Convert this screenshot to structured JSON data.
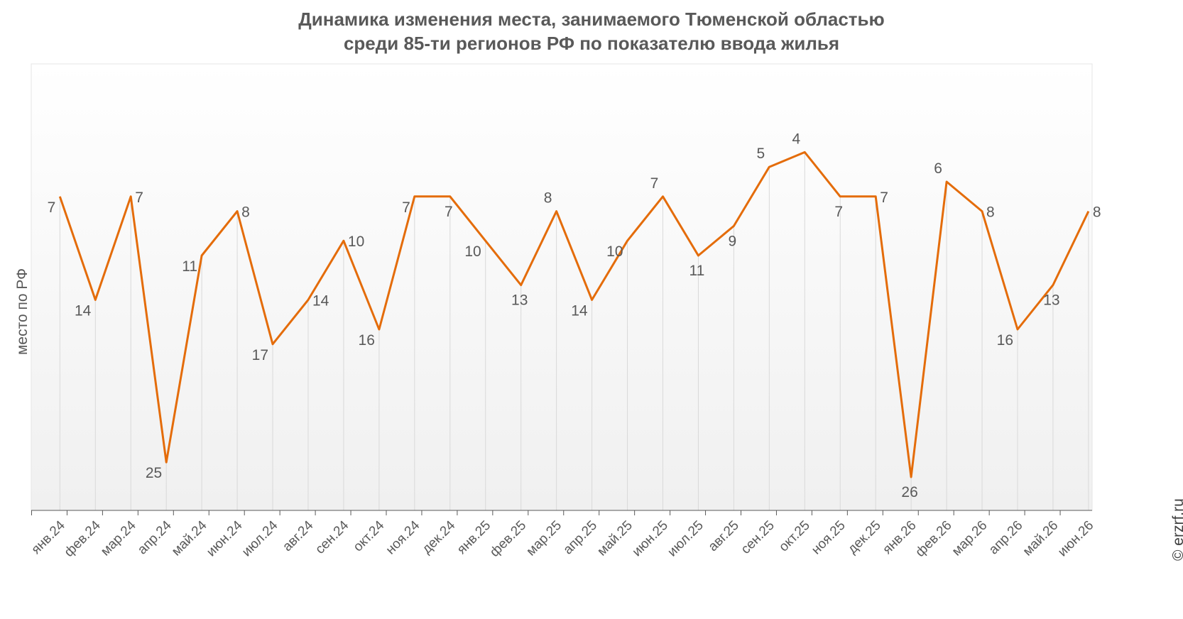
{
  "title_line1": "Динамика изменения места, занимаемого Тюменской областью",
  "title_line2": "среди 85-ти регионов РФ по показателю ввода жилья",
  "copyright": "© erzrf.ru",
  "colors": {
    "line": "#E46C0A",
    "gridline": "#D9D9D9",
    "axis": "#595959",
    "bg_top": "#FFFFFF",
    "bg_bottom": "#F0F0F0"
  },
  "chart_data": {
    "type": "line",
    "title": "Динамика изменения места, занимаемого Тюменской областью среди 85-ти регионов РФ по показателю ввода жилья",
    "ylabel": "место по РФ",
    "xlabel": "",
    "y_inverted": true,
    "ylim": [
      30,
      1
    ],
    "grid": false,
    "categories": [
      "янв.24",
      "фев.24",
      "мар.24",
      "апр.24",
      "май.24",
      "июн.24",
      "июл.24",
      "авг.24",
      "сен.24",
      "окт.24",
      "ноя.24",
      "дек.24",
      "янв.25",
      "фев.25",
      "мар.25",
      "апр.25",
      "май.25",
      "июн.25",
      "июл.25",
      "авг.25",
      "сен.25",
      "окт.25",
      "ноя.25",
      "дек.25",
      "янв.26",
      "фев.26",
      "мар.26",
      "апр.26",
      "май.26",
      "июн.26"
    ],
    "values": [
      7,
      14,
      7,
      25,
      11,
      8,
      17,
      14,
      10,
      16,
      7,
      7,
      10,
      13,
      8,
      14,
      10,
      7,
      11,
      9,
      5,
      4,
      7,
      7,
      26,
      6,
      8,
      16,
      13,
      8
    ],
    "label_position": [
      "left",
      "left",
      "right",
      "left",
      "left",
      "right",
      "left",
      "right",
      "right",
      "left",
      "left",
      "below",
      "left",
      "below",
      "above",
      "left",
      "left",
      "above",
      "below",
      "below",
      "above",
      "above",
      "below",
      "right",
      "below",
      "above",
      "right",
      "left",
      "below",
      "right"
    ]
  }
}
